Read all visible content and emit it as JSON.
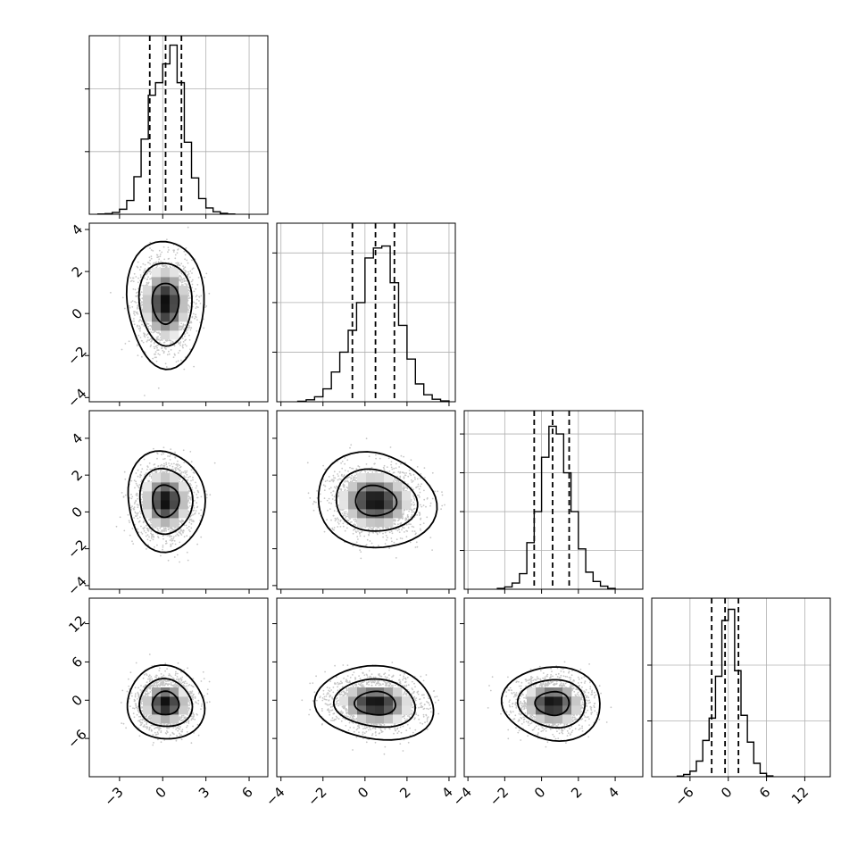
{
  "chart_data": {
    "type": "corner",
    "params": [
      {
        "range": [
          -5.1,
          7.3
        ],
        "ticks": [
          -3,
          0,
          3,
          6
        ],
        "tick_labels": [
          "−3",
          "0",
          "3",
          "6"
        ],
        "quantiles": [
          -0.9,
          0.2,
          1.3
        ],
        "hist": {
          "edges": [
            -4.5,
            -4.0,
            -3.5,
            -3.0,
            -2.5,
            -2.0,
            -1.5,
            -1.0,
            -0.5,
            0.0,
            0.5,
            1.0,
            1.5,
            2.0,
            2.5,
            3.0,
            3.5,
            4.0,
            4.5,
            5.0
          ],
          "counts": [
            0.5,
            1,
            3,
            8,
            22,
            60,
            120,
            190,
            210,
            240,
            270,
            210,
            115,
            58,
            25,
            10,
            4,
            1.5,
            0.5
          ]
        },
        "hist_ylim": [
          0,
          285
        ],
        "hist_yticks": [
          100,
          200
        ]
      },
      {
        "range": [
          -4.2,
          4.3
        ],
        "ticks": [
          -4,
          -2,
          0,
          2,
          4
        ],
        "tick_labels": [
          "−4",
          "−2",
          "0",
          "2",
          "4"
        ],
        "quantiles": [
          -0.6,
          0.5,
          1.4
        ],
        "hist": {
          "edges": [
            -3.2,
            -2.8,
            -2.4,
            -2.0,
            -1.6,
            -1.2,
            -0.8,
            -0.4,
            0.0,
            0.4,
            0.8,
            1.2,
            1.6,
            2.0,
            2.4,
            2.8,
            3.2,
            3.6,
            4.0
          ],
          "counts": [
            0.5,
            2,
            5,
            13,
            30,
            50,
            72,
            100,
            145,
            155,
            157,
            120,
            77,
            43,
            18,
            7,
            2.5,
            0.8
          ]
        },
        "hist_ylim": [
          0,
          180
        ],
        "hist_yticks": [
          50,
          100,
          150
        ]
      },
      {
        "range": [
          -4.2,
          5.5
        ],
        "ticks": [
          -4,
          -2,
          0,
          2,
          4
        ],
        "tick_labels": [
          "−4",
          "−2",
          "0",
          "2",
          "4"
        ],
        "quantiles": [
          -0.4,
          0.6,
          1.5
        ],
        "hist": {
          "edges": [
            -2.4,
            -2.0,
            -1.6,
            -1.2,
            -0.8,
            -0.4,
            0.0,
            0.4,
            0.8,
            1.2,
            1.6,
            2.0,
            2.4,
            2.8,
            3.2,
            3.6,
            4.0
          ],
          "counts": [
            1,
            3,
            8,
            20,
            60,
            100,
            170,
            210,
            200,
            150,
            100,
            52,
            22,
            10,
            4,
            1
          ]
        },
        "hist_ylim": [
          0,
          230
        ],
        "hist_yticks": [
          50,
          100,
          150,
          200
        ]
      },
      {
        "range": [
          -12,
          16
        ],
        "ticks": [
          -6,
          0,
          6,
          12
        ],
        "tick_labels": [
          "−6",
          "0",
          "6",
          "12"
        ],
        "quantiles": [
          -2.6,
          -0.5,
          1.6
        ],
        "hist": {
          "edges": [
            -8,
            -7,
            -6,
            -5,
            -4,
            -3,
            -2,
            -1,
            0,
            1,
            2,
            3,
            4,
            5,
            6,
            7
          ],
          "counts": [
            1,
            4,
            10,
            28,
            65,
            105,
            180,
            280,
            300,
            190,
            110,
            62,
            24,
            6,
            1.5
          ]
        },
        "hist_ylim": [
          0,
          320
        ],
        "hist_yticks": [
          100,
          200
        ]
      }
    ],
    "pairs": [
      {
        "row": 1,
        "col": 0,
        "mean": [
          0.2,
          0.5
        ],
        "sd": [
          0.9,
          1.0
        ],
        "rho": 0.0,
        "n": 2200
      },
      {
        "row": 2,
        "col": 0,
        "mean": [
          0.2,
          0.6
        ],
        "sd": [
          0.9,
          0.9
        ],
        "rho": 0.0,
        "n": 2200
      },
      {
        "row": 2,
        "col": 1,
        "mean": [
          0.5,
          0.6
        ],
        "sd": [
          0.95,
          0.85
        ],
        "rho": -0.05,
        "n": 2200
      },
      {
        "row": 3,
        "col": 0,
        "mean": [
          0.2,
          -0.5
        ],
        "sd": [
          0.9,
          1.9
        ],
        "rho": 0.0,
        "n": 2200
      },
      {
        "row": 3,
        "col": 1,
        "mean": [
          0.5,
          -0.5
        ],
        "sd": [
          0.95,
          1.9
        ],
        "rho": -0.05,
        "n": 2200
      },
      {
        "row": 3,
        "col": 2,
        "mean": [
          0.6,
          -0.5
        ],
        "sd": [
          0.9,
          1.9
        ],
        "rho": 0.0,
        "n": 2200
      }
    ],
    "row_axis": {
      "1": {
        "range": [
          -4.2,
          4.3
        ],
        "ticks": [
          -4,
          -2,
          0,
          2,
          4
        ],
        "tick_labels": [
          "−4",
          "−2",
          "0",
          "2",
          "4"
        ]
      },
      "2": {
        "range": [
          -4.2,
          5.5
        ],
        "ticks": [
          -4,
          -2,
          0,
          2,
          4
        ],
        "tick_labels": [
          "−4",
          "−2",
          "0",
          "2",
          "4"
        ]
      },
      "3": {
        "range": [
          -12,
          16
        ],
        "ticks": [
          -6,
          0,
          6,
          12
        ],
        "tick_labels": [
          "−6",
          "0",
          "6",
          "12"
        ]
      }
    },
    "grid": true,
    "contour_levels": [
      0.393,
      0.865,
      0.989
    ],
    "colors": {
      "grid": "#b0b0b0",
      "ink": "#000000",
      "fill_dark": "#1a1a1a",
      "fill_light": "#e6e6e6"
    }
  }
}
